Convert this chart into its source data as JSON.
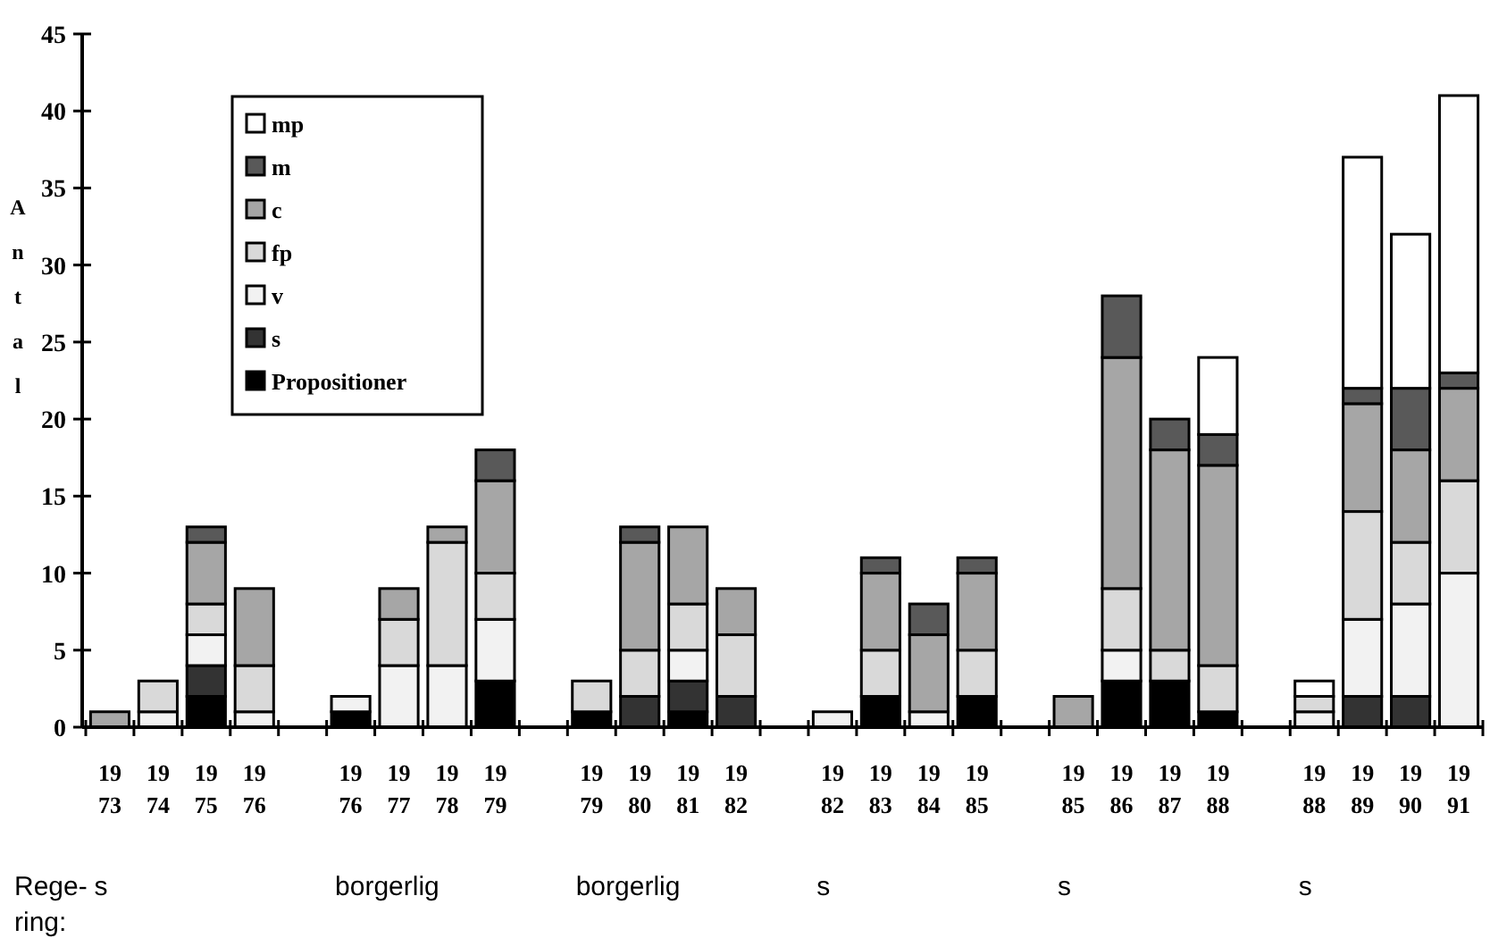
{
  "chart_data": {
    "type": "bar",
    "stacked": true,
    "ylabel": "Antal",
    "xlabel": "Rege-\nring:",
    "categories": [
      "19\n73",
      "19\n74",
      "19\n75",
      "19\n76",
      null,
      "19\n76",
      "19\n77",
      "19\n78",
      "19\n79",
      null,
      "19\n79",
      "19\n80",
      "19\n81",
      "19\n82",
      null,
      "19\n82",
      "19\n83",
      "19\n84",
      "19\n85",
      null,
      "19\n85",
      "19\n86",
      "19\n87",
      "19\n88",
      null,
      "19\n88",
      "19\n89",
      "19\n90",
      "19\n91"
    ],
    "series": [
      {
        "name": "Propositioner",
        "color": "#000000",
        "values": [
          0,
          0,
          2,
          0,
          null,
          1,
          0,
          0,
          3,
          null,
          1,
          0,
          1,
          0,
          null,
          0,
          2,
          0,
          2,
          null,
          0,
          3,
          3,
          1,
          null,
          0,
          0,
          0,
          0
        ]
      },
      {
        "name": "s",
        "color": "#333333",
        "values": [
          0,
          0,
          2,
          0,
          null,
          0,
          0,
          0,
          0,
          null,
          0,
          2,
          2,
          2,
          null,
          0,
          0,
          0,
          0,
          null,
          0,
          0,
          0,
          0,
          null,
          0,
          2,
          2,
          0
        ]
      },
      {
        "name": "v",
        "color": "#f2f2f2",
        "values": [
          0,
          1,
          2,
          1,
          null,
          1,
          4,
          4,
          4,
          null,
          0,
          0,
          2,
          0,
          null,
          1,
          0,
          1,
          0,
          null,
          0,
          2,
          0,
          0,
          null,
          1,
          5,
          6,
          10
        ]
      },
      {
        "name": "fp",
        "color": "#d9d9d9",
        "values": [
          0,
          2,
          2,
          3,
          null,
          0,
          3,
          8,
          3,
          null,
          2,
          3,
          3,
          4,
          null,
          0,
          3,
          0,
          3,
          null,
          0,
          4,
          2,
          3,
          null,
          1,
          7,
          4,
          6
        ]
      },
      {
        "name": "c",
        "color": "#a6a6a6",
        "values": [
          1,
          0,
          4,
          5,
          null,
          0,
          2,
          1,
          6,
          null,
          0,
          7,
          5,
          3,
          null,
          0,
          5,
          5,
          5,
          null,
          2,
          15,
          13,
          13,
          null,
          0,
          7,
          6,
          6
        ]
      },
      {
        "name": "m",
        "color": "#595959",
        "values": [
          0,
          0,
          1,
          0,
          null,
          0,
          0,
          0,
          2,
          null,
          0,
          1,
          0,
          0,
          null,
          0,
          1,
          2,
          1,
          null,
          0,
          4,
          2,
          2,
          null,
          0,
          1,
          4,
          1
        ]
      },
      {
        "name": "mp",
        "color": "#ffffff",
        "values": [
          0,
          0,
          0,
          0,
          null,
          0,
          0,
          0,
          0,
          null,
          0,
          0,
          0,
          0,
          null,
          0,
          0,
          0,
          0,
          null,
          0,
          0,
          0,
          5,
          null,
          1,
          15,
          10,
          18
        ]
      }
    ],
    "ylim": [
      0,
      45
    ],
    "yticks": [
      0,
      5,
      10,
      15,
      20,
      25,
      30,
      35,
      40,
      45
    ],
    "legend": "top left",
    "annotations": [
      "s",
      "borgerlig",
      "borgerlig",
      "s",
      "s",
      "s"
    ]
  }
}
